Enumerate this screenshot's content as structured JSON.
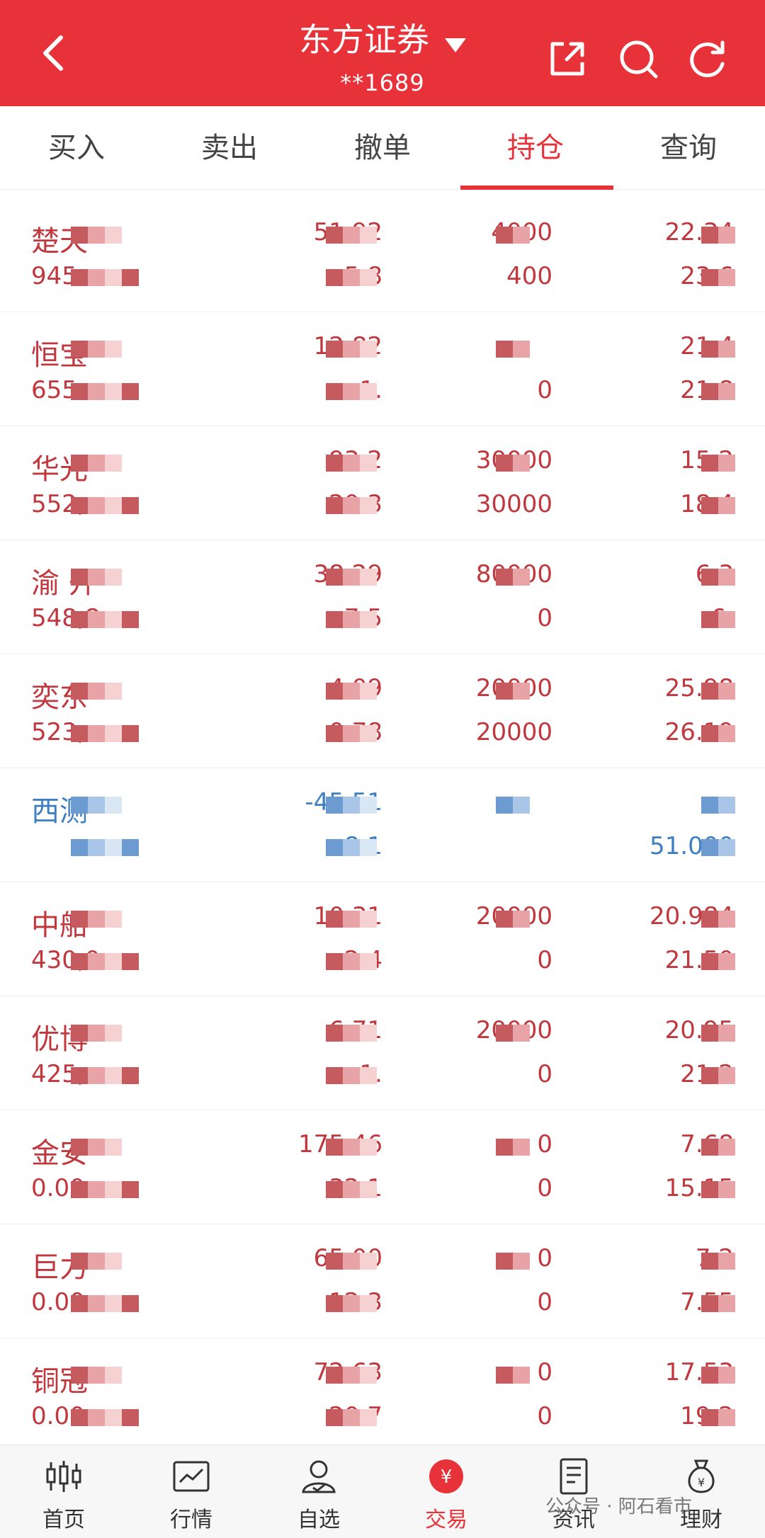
{
  "header": {
    "title": "东方证券",
    "account": "**1689",
    "icons": [
      "back-icon",
      "dropdown-caret-icon",
      "share-icon",
      "search-icon",
      "refresh-icon"
    ]
  },
  "tabs": [
    {
      "label": "买入"
    },
    {
      "label": "卖出"
    },
    {
      "label": "撤单"
    },
    {
      "label": "持仓",
      "active": true
    },
    {
      "label": "查询"
    }
  ],
  "colors": {
    "brand": "#e8323a",
    "gain": "#c0383e",
    "loss": "#3d7fc1"
  },
  "positions": [
    {
      "name": "楚天",
      "market_value": "945",
      "pl": "51,92",
      "pl_ratio": "5.8",
      "qty": "4000",
      "avail": "400",
      "cost": "22.34",
      "price": "23.6",
      "trend": "up"
    },
    {
      "name": "恒宝",
      "market_value": "655",
      "pl": "12,82",
      "pl_ratio": "1.",
      "qty": "",
      "avail": "0",
      "cost": "21.4",
      "price": "21.8",
      "trend": "up"
    },
    {
      "name": "华光",
      "market_value": "552,",
      "pl": "93,2",
      "pl_ratio": "20.3",
      "qty": "30000",
      "avail": "30000",
      "cost": "15.2",
      "price": "18.4",
      "trend": "up"
    },
    {
      "name": "渝 开",
      "market_value": "548,8",
      "pl": "38,29",
      "pl_ratio": "7.5",
      "qty": "80000",
      "avail": "0",
      "cost": "6.3",
      "price": "6.",
      "trend": "up"
    },
    {
      "name": "奕东",
      "market_value": "523,",
      "pl": "4,09",
      "pl_ratio": "0.78",
      "qty": "20000",
      "avail": "20000",
      "cost": "25.98",
      "price": "26.19",
      "trend": "up"
    },
    {
      "name": "西测",
      "market_value": "",
      "pl": "-45,51",
      "pl_ratio": "-8.1",
      "qty": "",
      "avail": "",
      "cost": "",
      "price": "51.000",
      "trend": "down"
    },
    {
      "name": "中船",
      "market_value": "430,0",
      "pl": "10,31",
      "pl_ratio": "2.4",
      "qty": "20000",
      "avail": "0",
      "cost": "20.984",
      "price": "21.50",
      "trend": "up"
    },
    {
      "name": "优博",
      "market_value": "425,",
      "pl": "6,71",
      "pl_ratio": "1.",
      "qty": "20000",
      "avail": "0",
      "cost": "20.95",
      "price": "21.2",
      "trend": "up"
    },
    {
      "name": "金安",
      "market_value": "0.00",
      "pl": "175,46",
      "pl_ratio": "32.1",
      "qty": "0",
      "avail": "0",
      "cost": "7.68",
      "price": "15.15",
      "trend": "up"
    },
    {
      "name": "巨力",
      "market_value": "0.00",
      "pl": "65,00",
      "pl_ratio": "12.3",
      "qty": "0",
      "avail": "0",
      "cost": "7.2",
      "price": "7.55",
      "trend": "up"
    },
    {
      "name": "铜冠",
      "market_value": "0.00",
      "pl": "72,63",
      "pl_ratio": "20.7",
      "qty": "0",
      "avail": "0",
      "cost": "17.53",
      "price": "19.2",
      "trend": "up"
    }
  ],
  "nav": [
    {
      "label": "首页",
      "icon": "candlestick-icon"
    },
    {
      "label": "行情",
      "icon": "chart-icon"
    },
    {
      "label": "自选",
      "icon": "user-icon"
    },
    {
      "label": "交易",
      "icon": "yuan-icon",
      "active": true
    },
    {
      "label": "资讯",
      "icon": "document-icon"
    },
    {
      "label": "理财",
      "icon": "money-bag-icon"
    }
  ],
  "watermark": "公众号 · 阿石看市"
}
